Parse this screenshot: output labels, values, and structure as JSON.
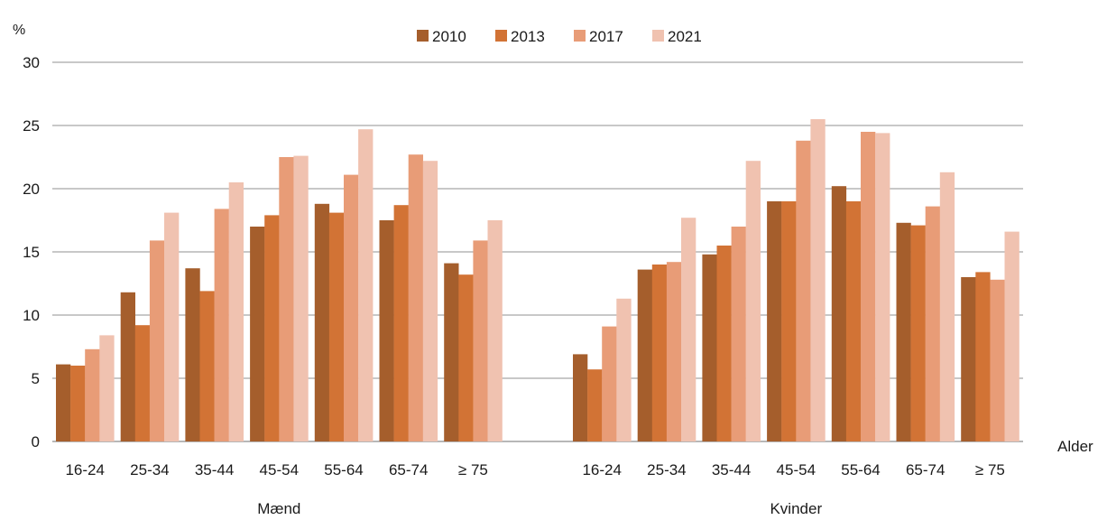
{
  "chart_data": {
    "type": "bar",
    "ylabel": "%",
    "xlabel": "Alder",
    "ylim": [
      0,
      30
    ],
    "yticks": [
      0,
      5,
      10,
      15,
      20,
      25,
      30
    ],
    "grid": true,
    "legend_position": "top-center",
    "groups": [
      {
        "name": "Mænd",
        "categories": [
          "16-24",
          "25-34",
          "35-44",
          "45-54",
          "55-64",
          "65-74",
          "≥ 75"
        ],
        "series": [
          {
            "name": "2010",
            "color": "#a55e2c",
            "values": [
              6.1,
              11.8,
              13.7,
              17.0,
              18.8,
              17.5,
              14.1
            ]
          },
          {
            "name": "2013",
            "color": "#d27335",
            "values": [
              6.0,
              9.2,
              11.9,
              17.9,
              18.1,
              18.7,
              13.2
            ]
          },
          {
            "name": "2017",
            "color": "#e89c77",
            "values": [
              7.3,
              15.9,
              18.4,
              22.5,
              21.1,
              22.7,
              15.9
            ]
          },
          {
            "name": "2021",
            "color": "#f0c2b0",
            "values": [
              8.4,
              18.1,
              20.5,
              22.6,
              24.7,
              22.2,
              17.5
            ]
          }
        ]
      },
      {
        "name": "Kvinder",
        "categories": [
          "16-24",
          "25-34",
          "35-44",
          "45-54",
          "55-64",
          "65-74",
          "≥ 75"
        ],
        "series": [
          {
            "name": "2010",
            "color": "#a55e2c",
            "values": [
              6.9,
              13.6,
              14.8,
              19.0,
              20.2,
              17.3,
              13.0
            ]
          },
          {
            "name": "2013",
            "color": "#d27335",
            "values": [
              5.7,
              14.0,
              15.5,
              19.0,
              19.0,
              17.1,
              13.4
            ]
          },
          {
            "name": "2017",
            "color": "#e89c77",
            "values": [
              9.1,
              14.2,
              17.0,
              23.8,
              24.5,
              18.6,
              12.8
            ]
          },
          {
            "name": "2021",
            "color": "#f0c2b0",
            "values": [
              11.3,
              17.7,
              22.2,
              25.5,
              24.4,
              21.3,
              16.6
            ]
          }
        ]
      }
    ]
  }
}
